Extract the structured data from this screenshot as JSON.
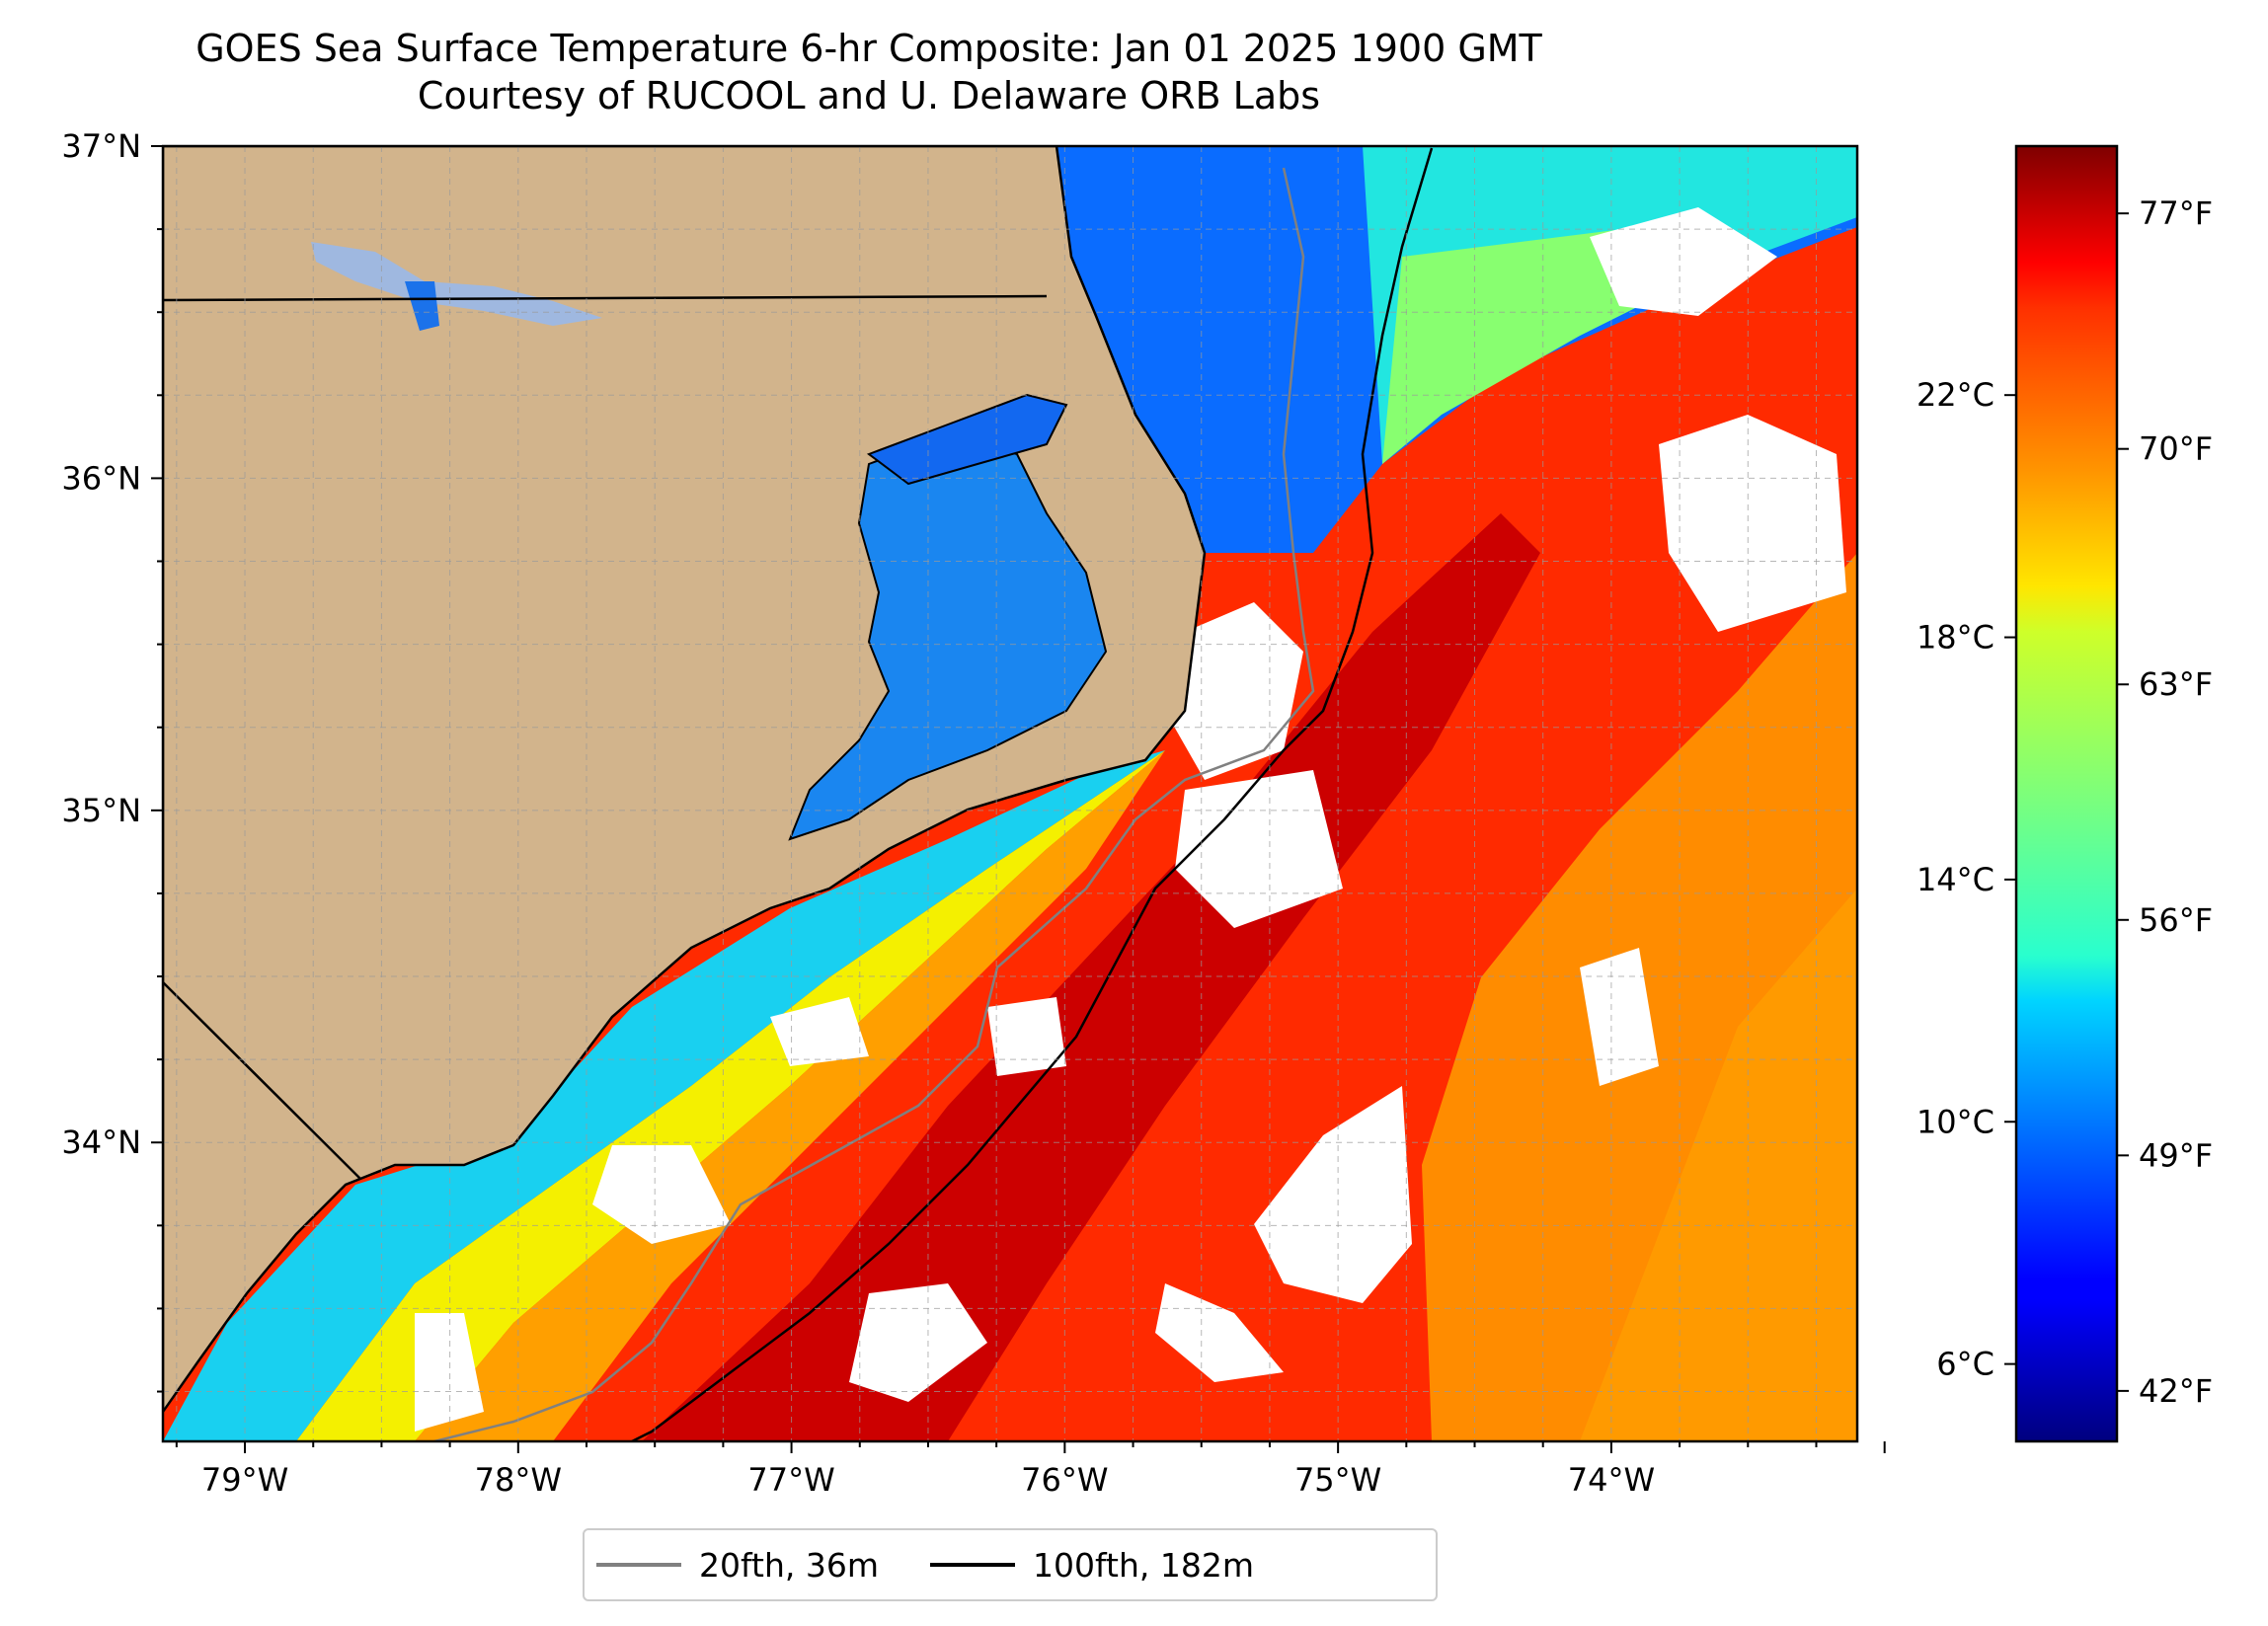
{
  "title": {
    "line1": "GOES Sea Surface Temperature 6-hr Composite: Jan 01 2025 1900 GMT",
    "line2": "Courtesy of RUCOOL and U. Delaware ORB Labs"
  },
  "map": {
    "lon_range": [
      -79.3,
      -73.1
    ],
    "lat_range": [
      33.1,
      37.0
    ],
    "lon_ticks": [
      {
        "value": -79,
        "label": "79°W"
      },
      {
        "value": -78,
        "label": "78°W"
      },
      {
        "value": -77,
        "label": "77°W"
      },
      {
        "value": -76,
        "label": "76°W"
      },
      {
        "value": -75,
        "label": "75°W"
      },
      {
        "value": -74,
        "label": "74°W"
      }
    ],
    "lat_ticks": [
      {
        "value": 37,
        "label": "37°N"
      },
      {
        "value": 36,
        "label": "36°N"
      },
      {
        "value": 35,
        "label": "35°N"
      },
      {
        "value": 34,
        "label": "34°N"
      }
    ],
    "grid": true,
    "colors": {
      "land": "#d2b48c",
      "no_data": "#ffffff",
      "isobath_20fth": "#808080",
      "isobath_100fth": "#000000",
      "grid": "#9a9a9a"
    }
  },
  "colorbar": {
    "range_f": [
      40.5,
      79.0
    ],
    "celsius_ticks": [
      {
        "value": 22,
        "label": "22°C"
      },
      {
        "value": 18,
        "label": "18°C"
      },
      {
        "value": 14,
        "label": "14°C"
      },
      {
        "value": 10,
        "label": "10°C"
      },
      {
        "value": 6,
        "label": "6°C"
      }
    ],
    "fahrenheit_ticks": [
      {
        "value": 77,
        "label": "77°F"
      },
      {
        "value": 70,
        "label": "70°F"
      },
      {
        "value": 63,
        "label": "63°F"
      },
      {
        "value": 56,
        "label": "56°F"
      },
      {
        "value": 49,
        "label": "49°F"
      },
      {
        "value": 42,
        "label": "42°F"
      }
    ],
    "colormap": "jet"
  },
  "legend": {
    "placement": "bottom-center",
    "items": [
      {
        "label": "20fth, 36m",
        "color": "#808080"
      },
      {
        "label": "100fth, 182m",
        "color": "#000000"
      }
    ]
  }
}
